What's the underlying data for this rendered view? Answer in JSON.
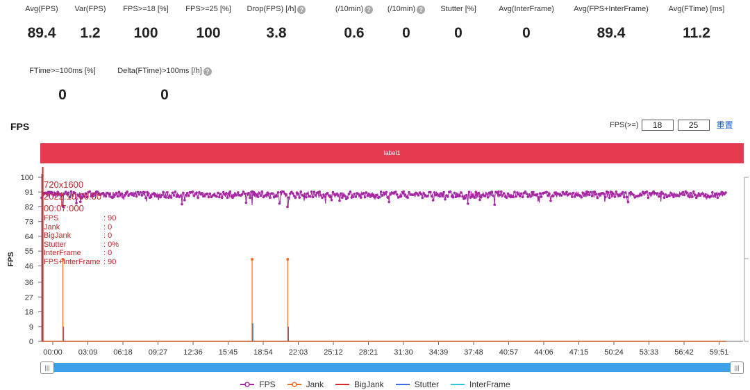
{
  "metrics_top": [
    {
      "label": "Avg(FPS)",
      "value": "89.4",
      "help": false
    },
    {
      "label": "Var(FPS)",
      "value": "1.2",
      "help": false
    },
    {
      "label": "FPS>=18 [%]",
      "value": "100",
      "help": false
    },
    {
      "label": "FPS>=25 [%]",
      "value": "100",
      "help": false
    },
    {
      "label": "Drop(FPS) [/h]",
      "value": "3.8",
      "help": true
    },
    {
      "label": "(/10min)",
      "value": "0.6",
      "help": true
    },
    {
      "label": "(/10min)",
      "value": "0",
      "help": true
    },
    {
      "label": "Stutter [%]",
      "value": "0",
      "help": false
    },
    {
      "label": "Avg(InterFrame)",
      "value": "0",
      "help": false
    },
    {
      "label": "Avg(FPS+InterFrame)",
      "value": "89.4",
      "help": false
    },
    {
      "label": "Avg(FTime) [ms]",
      "value": "11.2",
      "help": false
    }
  ],
  "metrics_bottom": [
    {
      "label": "FTime>=100ms [%]",
      "value": "0",
      "help": false
    },
    {
      "label": "Delta(FTime)>100ms [/h]",
      "value": "0",
      "help": true
    }
  ],
  "help_glyph": "?",
  "section": {
    "title": "FPS"
  },
  "threshold": {
    "label": "FPS(>=)",
    "value1": "18",
    "value2": "25",
    "reset": "重置"
  },
  "label_bar": {
    "text": "label1"
  },
  "tooltip": {
    "resolution": "720x1600",
    "date": "2022.10.00.00",
    "time": "00:07:000",
    "rows": [
      {
        "key": "FPS",
        "val": ": 90"
      },
      {
        "key": "Jank",
        "val": ": 0"
      },
      {
        "key": "BigJank",
        "val": ": 0"
      },
      {
        "key": "Stutter",
        "val": ": 0%"
      },
      {
        "key": "InterFrame",
        "val": ": 0"
      },
      {
        "key": "FPS+InterFrame",
        "val": ": 90"
      }
    ]
  },
  "slider": {
    "left_handle": "|||",
    "right_handle": "|||"
  },
  "legend": [
    {
      "name": "FPS",
      "color": "#a626a4",
      "marker": "circle"
    },
    {
      "name": "Jank",
      "color": "#f26b1d",
      "marker": "circle"
    },
    {
      "name": "BigJank",
      "color": "#d9262c",
      "marker": "line"
    },
    {
      "name": "Stutter",
      "color": "#3b6fe0",
      "marker": "line"
    },
    {
      "name": "InterFrame",
      "color": "#2fc4d6",
      "marker": "line"
    }
  ],
  "chart_data": {
    "type": "line",
    "title": "FPS",
    "ylabel": "FPS",
    "xlabel": "",
    "ylim": [
      0,
      100
    ],
    "yticks": [
      0,
      9,
      18,
      27,
      36,
      46,
      55,
      64,
      73,
      82,
      91,
      100
    ],
    "xlim_minutes": [
      0,
      63
    ],
    "xticks": [
      "00:00",
      "03:09",
      "06:18",
      "09:27",
      "12:36",
      "15:45",
      "18:54",
      "22:03",
      "25:12",
      "28:21",
      "31:30",
      "34:39",
      "37:48",
      "40:57",
      "44:06",
      "47:15",
      "50:24",
      "53:33",
      "56:42",
      "59:51"
    ],
    "series": [
      {
        "name": "FPS",
        "baseline": 89.4,
        "spread": 1.2,
        "dips": [
          {
            "t": 1.9,
            "v": 82
          },
          {
            "t": 18.9,
            "v": 83
          },
          {
            "t": 21.4,
            "v": 84
          },
          {
            "t": 22.1,
            "v": 82
          },
          {
            "t": 10.5,
            "v": 86
          },
          {
            "t": 35.2,
            "v": 86
          }
        ]
      },
      {
        "name": "Jank",
        "spikes": [
          {
            "t": 1.9,
            "v": 50
          },
          {
            "t": 18.9,
            "v": 50
          },
          {
            "t": 22.1,
            "v": 50
          }
        ],
        "baseline": 0
      },
      {
        "name": "BigJank",
        "baseline": 0
      },
      {
        "name": "Stutter",
        "spikes": [
          {
            "t": 1.9,
            "v": 9
          },
          {
            "t": 18.9,
            "v": 11
          },
          {
            "t": 22.1,
            "v": 9
          }
        ],
        "baseline": 0
      },
      {
        "name": "InterFrame",
        "baseline": 0
      }
    ],
    "cursor_minutes": 0.1
  }
}
